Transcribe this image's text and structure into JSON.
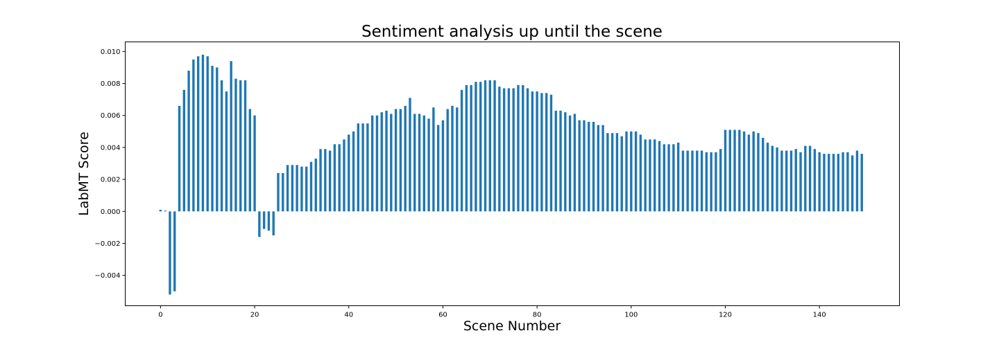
{
  "chart_data": {
    "type": "bar",
    "title": "Sentiment analysis up until the scene",
    "xlabel": "Scene Number",
    "ylabel": "LabMT Score",
    "xlim": [
      -7.5,
      157
    ],
    "ylim": [
      -0.0059,
      0.0106
    ],
    "xticks": [
      0,
      20,
      40,
      60,
      80,
      100,
      120,
      140
    ],
    "yticks": [
      -0.004,
      -0.002,
      0.0,
      0.002,
      0.004,
      0.006,
      0.008,
      0.01
    ],
    "ytick_labels": [
      "−0.004",
      "−0.002",
      "0.000",
      "0.002",
      "0.004",
      "0.006",
      "0.008",
      "0.010"
    ],
    "grid": false,
    "bar_color": "#1f77b4",
    "x": [
      0,
      1,
      2,
      3,
      4,
      5,
      6,
      7,
      8,
      9,
      10,
      11,
      12,
      13,
      14,
      15,
      16,
      17,
      18,
      19,
      20,
      21,
      22,
      23,
      24,
      25,
      26,
      27,
      28,
      29,
      30,
      31,
      32,
      33,
      34,
      35,
      36,
      37,
      38,
      39,
      40,
      41,
      42,
      43,
      44,
      45,
      46,
      47,
      48,
      49,
      50,
      51,
      52,
      53,
      54,
      55,
      56,
      57,
      58,
      59,
      60,
      61,
      62,
      63,
      64,
      65,
      66,
      67,
      68,
      69,
      70,
      71,
      72,
      73,
      74,
      75,
      76,
      77,
      78,
      79,
      80,
      81,
      82,
      83,
      84,
      85,
      86,
      87,
      88,
      89,
      90,
      91,
      92,
      93,
      94,
      95,
      96,
      97,
      98,
      99,
      100,
      101,
      102,
      103,
      104,
      105,
      106,
      107,
      108,
      109,
      110,
      111,
      112,
      113,
      114,
      115,
      116,
      117,
      118,
      119,
      120,
      121,
      122,
      123,
      124,
      125,
      126,
      127,
      128,
      129,
      130,
      131,
      132,
      133,
      134,
      135,
      136,
      137,
      138,
      139,
      140,
      141,
      142,
      143,
      144,
      145,
      146,
      147,
      148,
      149
    ],
    "values": [
      0.0001,
      5e-05,
      -0.0052,
      -0.005,
      0.0066,
      0.0076,
      0.0088,
      0.0095,
      0.0097,
      0.0098,
      0.0097,
      0.0091,
      0.009,
      0.0082,
      0.0075,
      0.0094,
      0.0083,
      0.0082,
      0.0082,
      0.0064,
      0.006,
      -0.0016,
      -0.0011,
      -0.0012,
      -0.0015,
      0.0024,
      0.0024,
      0.0029,
      0.0029,
      0.0029,
      0.0028,
      0.0028,
      0.0031,
      0.0033,
      0.0039,
      0.0039,
      0.0038,
      0.0042,
      0.0042,
      0.0045,
      0.0048,
      0.005,
      0.0055,
      0.0055,
      0.0055,
      0.006,
      0.006,
      0.0062,
      0.0063,
      0.0061,
      0.0064,
      0.0064,
      0.0066,
      0.0071,
      0.0061,
      0.0061,
      0.006,
      0.0058,
      0.0065,
      0.0054,
      0.0057,
      0.0064,
      0.0066,
      0.0065,
      0.0076,
      0.0079,
      0.0079,
      0.0081,
      0.0081,
      0.0082,
      0.0082,
      0.0082,
      0.0078,
      0.0077,
      0.0077,
      0.0077,
      0.0079,
      0.0079,
      0.0077,
      0.0075,
      0.0075,
      0.0074,
      0.0074,
      0.0073,
      0.0063,
      0.0063,
      0.0062,
      0.006,
      0.0061,
      0.0057,
      0.0057,
      0.0056,
      0.0056,
      0.0054,
      0.0054,
      0.0049,
      0.0049,
      0.0049,
      0.0047,
      0.005,
      0.005,
      0.005,
      0.0048,
      0.0045,
      0.0045,
      0.0045,
      0.0044,
      0.0042,
      0.0042,
      0.0042,
      0.0043,
      0.0038,
      0.0038,
      0.0038,
      0.0038,
      0.0038,
      0.0037,
      0.0037,
      0.0037,
      0.0039,
      0.0051,
      0.0051,
      0.0051,
      0.0051,
      0.005,
      0.0048,
      0.005,
      0.0049,
      0.0046,
      0.0043,
      0.0041,
      0.004,
      0.0038,
      0.0038,
      0.0038,
      0.0039,
      0.0037,
      0.0041,
      0.0041,
      0.0039,
      0.0037,
      0.0036,
      0.0036,
      0.0036,
      0.0036,
      0.0037,
      0.0037,
      0.0035,
      0.0038,
      0.0036
    ]
  }
}
